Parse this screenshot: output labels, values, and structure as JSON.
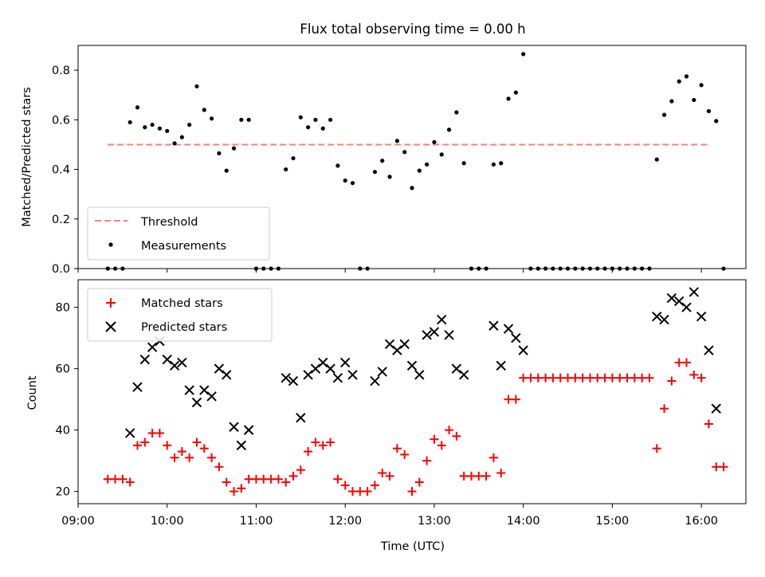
{
  "chart_data": [
    {
      "type": "scatter",
      "title": "Flux total observing time = 0.00 h",
      "xlabel": "",
      "ylabel": "Matched/Predicted stars",
      "xlim": [
        "09:00",
        "16:30"
      ],
      "ylim": [
        0,
        0.9
      ],
      "yticks": [
        0.0,
        0.2,
        0.4,
        0.6,
        0.8
      ],
      "ytick_labels": [
        "0.0",
        "0.2",
        "0.4",
        "0.6",
        "0.8"
      ],
      "legend_placement": "lower-left",
      "grid": false,
      "threshold": {
        "name": "Threshold",
        "value": 0.5,
        "x_start": "09:20",
        "x_end": "16:05",
        "color": "#ff7f7f",
        "style": "dashed"
      },
      "series": [
        {
          "name": "Measurements",
          "marker": "dot",
          "color": "#000000",
          "points": [
            [
              "09:20",
              0
            ],
            [
              "09:25",
              0
            ],
            [
              "09:30",
              0
            ],
            [
              "09:35",
              0.59
            ],
            [
              "09:40",
              0.65
            ],
            [
              "09:45",
              0.57
            ],
            [
              "09:50",
              0.58
            ],
            [
              "09:55",
              0.565
            ],
            [
              "10:00",
              0.555
            ],
            [
              "10:05",
              0.505
            ],
            [
              "10:10",
              0.53
            ],
            [
              "10:15",
              0.58
            ],
            [
              "10:20",
              0.735
            ],
            [
              "10:25",
              0.64
            ],
            [
              "10:30",
              0.605
            ],
            [
              "10:35",
              0.465
            ],
            [
              "10:40",
              0.395
            ],
            [
              "10:45",
              0.485
            ],
            [
              "10:50",
              0.6
            ],
            [
              "10:55",
              0.6
            ],
            [
              "11:00",
              0
            ],
            [
              "11:05",
              0
            ],
            [
              "11:10",
              0
            ],
            [
              "11:15",
              0
            ],
            [
              "11:20",
              0.4
            ],
            [
              "11:25",
              0.445
            ],
            [
              "11:30",
              0.61
            ],
            [
              "11:35",
              0.57
            ],
            [
              "11:40",
              0.6
            ],
            [
              "11:45",
              0.565
            ],
            [
              "11:50",
              0.6
            ],
            [
              "11:55",
              0.415
            ],
            [
              "12:00",
              0.355
            ],
            [
              "12:05",
              0.345
            ],
            [
              "12:10",
              0
            ],
            [
              "12:15",
              0
            ],
            [
              "12:20",
              0.39
            ],
            [
              "12:25",
              0.435
            ],
            [
              "12:30",
              0.37
            ],
            [
              "12:35",
              0.515
            ],
            [
              "12:40",
              0.47
            ],
            [
              "12:45",
              0.325
            ],
            [
              "12:50",
              0.395
            ],
            [
              "12:55",
              0.42
            ],
            [
              "13:00",
              0.51
            ],
            [
              "13:05",
              0.46
            ],
            [
              "13:10",
              0.56
            ],
            [
              "13:15",
              0.63
            ],
            [
              "13:20",
              0.425
            ],
            [
              "13:25",
              0
            ],
            [
              "13:30",
              0
            ],
            [
              "13:35",
              0
            ],
            [
              "13:40",
              0.42
            ],
            [
              "13:45",
              0.425
            ],
            [
              "13:50",
              0.685
            ],
            [
              "13:55",
              0.71
            ],
            [
              "14:00",
              0.865
            ],
            [
              "14:05",
              0
            ],
            [
              "14:10",
              0
            ],
            [
              "14:15",
              0
            ],
            [
              "14:20",
              0
            ],
            [
              "14:25",
              0
            ],
            [
              "14:30",
              0
            ],
            [
              "14:35",
              0
            ],
            [
              "14:40",
              0
            ],
            [
              "14:45",
              0
            ],
            [
              "14:50",
              0
            ],
            [
              "14:55",
              0
            ],
            [
              "15:00",
              0
            ],
            [
              "15:05",
              0
            ],
            [
              "15:10",
              0
            ],
            [
              "15:15",
              0
            ],
            [
              "15:20",
              0
            ],
            [
              "15:25",
              0
            ],
            [
              "15:30",
              0.44
            ],
            [
              "15:35",
              0.62
            ],
            [
              "15:40",
              0.675
            ],
            [
              "15:45",
              0.755
            ],
            [
              "15:50",
              0.775
            ],
            [
              "15:55",
              0.68
            ],
            [
              "16:00",
              0.74
            ],
            [
              "16:05",
              0.635
            ],
            [
              "16:10",
              0.595
            ],
            [
              "16:15",
              0
            ]
          ]
        }
      ]
    },
    {
      "type": "scatter",
      "title": "",
      "xlabel": "Time (UTC)",
      "ylabel": "Count",
      "xlim": [
        "09:00",
        "16:30"
      ],
      "ylim": [
        16,
        89
      ],
      "xticks": [
        "09:00",
        "10:00",
        "11:00",
        "12:00",
        "13:00",
        "14:00",
        "15:00",
        "16:00"
      ],
      "yticks": [
        20,
        40,
        60,
        80
      ],
      "ytick_labels": [
        "20",
        "40",
        "60",
        "80"
      ],
      "legend_placement": "upper-left",
      "grid": false,
      "series": [
        {
          "name": "Matched stars",
          "marker": "plus",
          "color": "#ff0000",
          "points": [
            [
              "09:20",
              24
            ],
            [
              "09:25",
              24
            ],
            [
              "09:30",
              24
            ],
            [
              "09:35",
              23
            ],
            [
              "09:40",
              35
            ],
            [
              "09:45",
              36
            ],
            [
              "09:50",
              39
            ],
            [
              "09:55",
              39
            ],
            [
              "10:00",
              35
            ],
            [
              "10:05",
              31
            ],
            [
              "10:10",
              33
            ],
            [
              "10:15",
              31
            ],
            [
              "10:20",
              36
            ],
            [
              "10:25",
              34
            ],
            [
              "10:30",
              31
            ],
            [
              "10:35",
              28
            ],
            [
              "10:40",
              23
            ],
            [
              "10:45",
              20
            ],
            [
              "10:50",
              21
            ],
            [
              "10:55",
              24
            ],
            [
              "11:00",
              24
            ],
            [
              "11:05",
              24
            ],
            [
              "11:10",
              24
            ],
            [
              "11:15",
              24
            ],
            [
              "11:20",
              23
            ],
            [
              "11:25",
              25
            ],
            [
              "11:30",
              27
            ],
            [
              "11:35",
              33
            ],
            [
              "11:40",
              36
            ],
            [
              "11:45",
              35
            ],
            [
              "11:50",
              36
            ],
            [
              "11:55",
              24
            ],
            [
              "12:00",
              22
            ],
            [
              "12:05",
              20
            ],
            [
              "12:10",
              20
            ],
            [
              "12:15",
              20
            ],
            [
              "12:20",
              22
            ],
            [
              "12:25",
              26
            ],
            [
              "12:30",
              25
            ],
            [
              "12:35",
              34
            ],
            [
              "12:40",
              32
            ],
            [
              "12:45",
              20
            ],
            [
              "12:50",
              23
            ],
            [
              "12:55",
              30
            ],
            [
              "13:00",
              37
            ],
            [
              "13:05",
              35
            ],
            [
              "13:10",
              40
            ],
            [
              "13:15",
              38
            ],
            [
              "13:20",
              25
            ],
            [
              "13:25",
              25
            ],
            [
              "13:30",
              25
            ],
            [
              "13:35",
              25
            ],
            [
              "13:40",
              31
            ],
            [
              "13:45",
              26
            ],
            [
              "13:50",
              50
            ],
            [
              "13:55",
              50
            ],
            [
              "14:00",
              57
            ],
            [
              "14:05",
              57
            ],
            [
              "14:10",
              57
            ],
            [
              "14:15",
              57
            ],
            [
              "14:20",
              57
            ],
            [
              "14:25",
              57
            ],
            [
              "14:30",
              57
            ],
            [
              "14:35",
              57
            ],
            [
              "14:40",
              57
            ],
            [
              "14:45",
              57
            ],
            [
              "14:50",
              57
            ],
            [
              "14:55",
              57
            ],
            [
              "15:00",
              57
            ],
            [
              "15:05",
              57
            ],
            [
              "15:10",
              57
            ],
            [
              "15:15",
              57
            ],
            [
              "15:20",
              57
            ],
            [
              "15:25",
              57
            ],
            [
              "15:30",
              34
            ],
            [
              "15:35",
              47
            ],
            [
              "15:40",
              56
            ],
            [
              "15:45",
              62
            ],
            [
              "15:50",
              62
            ],
            [
              "15:55",
              58
            ],
            [
              "16:00",
              57
            ],
            [
              "16:05",
              42
            ],
            [
              "16:10",
              28
            ],
            [
              "16:15",
              28
            ]
          ]
        },
        {
          "name": "Predicted stars",
          "marker": "x",
          "color": "#000000",
          "points": [
            [
              "09:35",
              39
            ],
            [
              "09:40",
              54
            ],
            [
              "09:45",
              63
            ],
            [
              "09:50",
              67
            ],
            [
              "09:55",
              69
            ],
            [
              "10:00",
              63
            ],
            [
              "10:05",
              61
            ],
            [
              "10:10",
              62
            ],
            [
              "10:15",
              53
            ],
            [
              "10:20",
              49
            ],
            [
              "10:25",
              53
            ],
            [
              "10:30",
              51
            ],
            [
              "10:35",
              60
            ],
            [
              "10:40",
              58
            ],
            [
              "10:45",
              41
            ],
            [
              "10:50",
              35
            ],
            [
              "10:55",
              40
            ],
            [
              "11:20",
              57
            ],
            [
              "11:25",
              56
            ],
            [
              "11:30",
              44
            ],
            [
              "11:35",
              58
            ],
            [
              "11:40",
              60
            ],
            [
              "11:45",
              62
            ],
            [
              "11:50",
              60
            ],
            [
              "11:55",
              57
            ],
            [
              "12:00",
              62
            ],
            [
              "12:05",
              58
            ],
            [
              "12:20",
              56
            ],
            [
              "12:25",
              59
            ],
            [
              "12:30",
              68
            ],
            [
              "12:35",
              66
            ],
            [
              "12:40",
              68
            ],
            [
              "12:45",
              61
            ],
            [
              "12:50",
              58
            ],
            [
              "12:55",
              71
            ],
            [
              "13:00",
              72
            ],
            [
              "13:05",
              76
            ],
            [
              "13:10",
              71
            ],
            [
              "13:15",
              60
            ],
            [
              "13:20",
              58
            ],
            [
              "13:40",
              74
            ],
            [
              "13:45",
              61
            ],
            [
              "13:50",
              73
            ],
            [
              "13:55",
              70
            ],
            [
              "14:00",
              66
            ],
            [
              "15:30",
              77
            ],
            [
              "15:35",
              76
            ],
            [
              "15:40",
              83
            ],
            [
              "15:45",
              82
            ],
            [
              "15:50",
              80
            ],
            [
              "15:55",
              85
            ],
            [
              "16:00",
              77
            ],
            [
              "16:05",
              66
            ],
            [
              "16:10",
              47
            ]
          ]
        }
      ]
    }
  ]
}
